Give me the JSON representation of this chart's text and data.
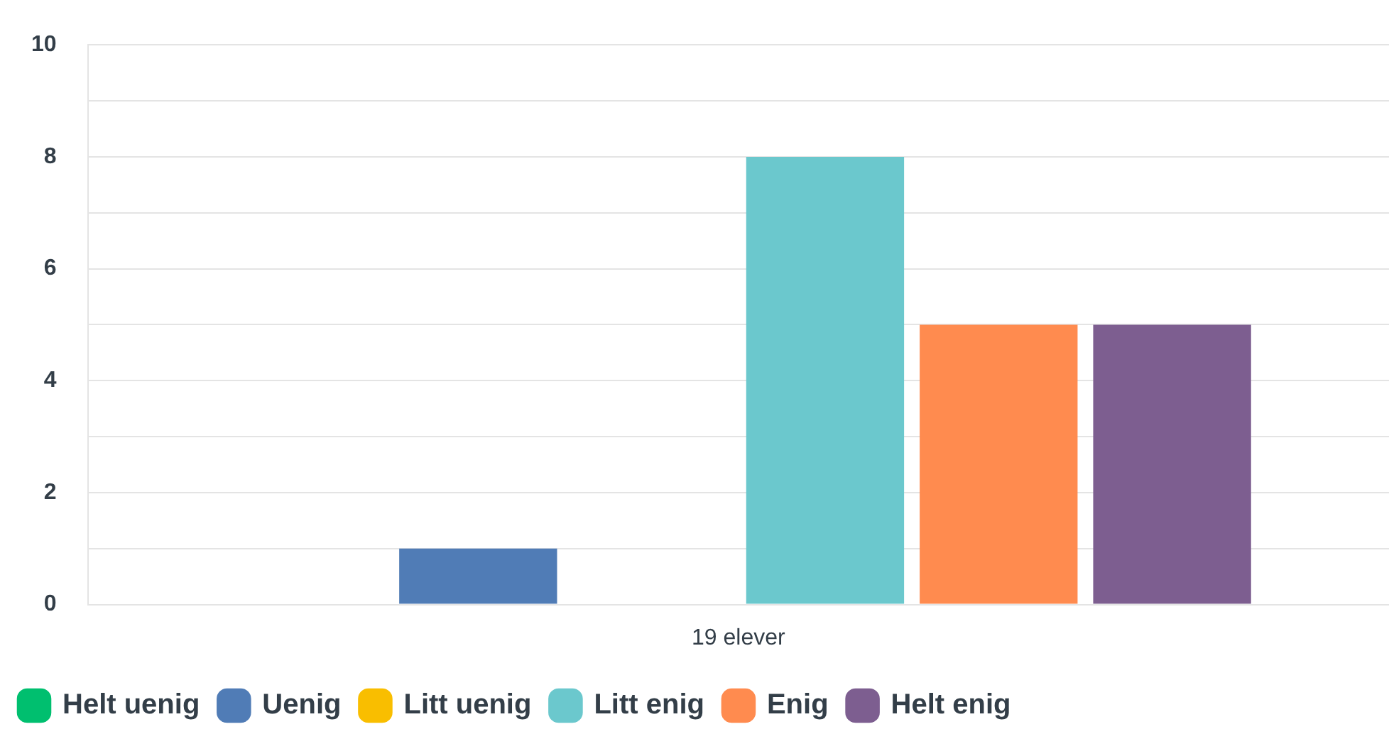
{
  "chart_data": {
    "type": "bar",
    "categories": [
      "19 elever"
    ],
    "series": [
      {
        "name": "Helt uenig",
        "color": "#00bf6f",
        "values": [
          0
        ]
      },
      {
        "name": "Uenig",
        "color": "#507cb6",
        "values": [
          1
        ]
      },
      {
        "name": "Litt uenig",
        "color": "#f9be00",
        "values": [
          0
        ]
      },
      {
        "name": "Litt enig",
        "color": "#6bc8cd",
        "values": [
          8
        ]
      },
      {
        "name": "Enig",
        "color": "#ff8b4f",
        "values": [
          5
        ]
      },
      {
        "name": "Helt enig",
        "color": "#7d5e90",
        "values": [
          5
        ]
      }
    ],
    "ylim": [
      0,
      10
    ],
    "yticks": [
      0,
      {
        "value": 1,
        "label": null
      },
      2,
      {
        "value": 3,
        "label": null
      },
      4,
      {
        "value": 5,
        "label": null
      },
      6,
      {
        "value": 7,
        "label": null
      },
      8,
      {
        "value": 9,
        "label": null
      },
      10
    ],
    "grid": "y",
    "legend": "bottom left"
  }
}
